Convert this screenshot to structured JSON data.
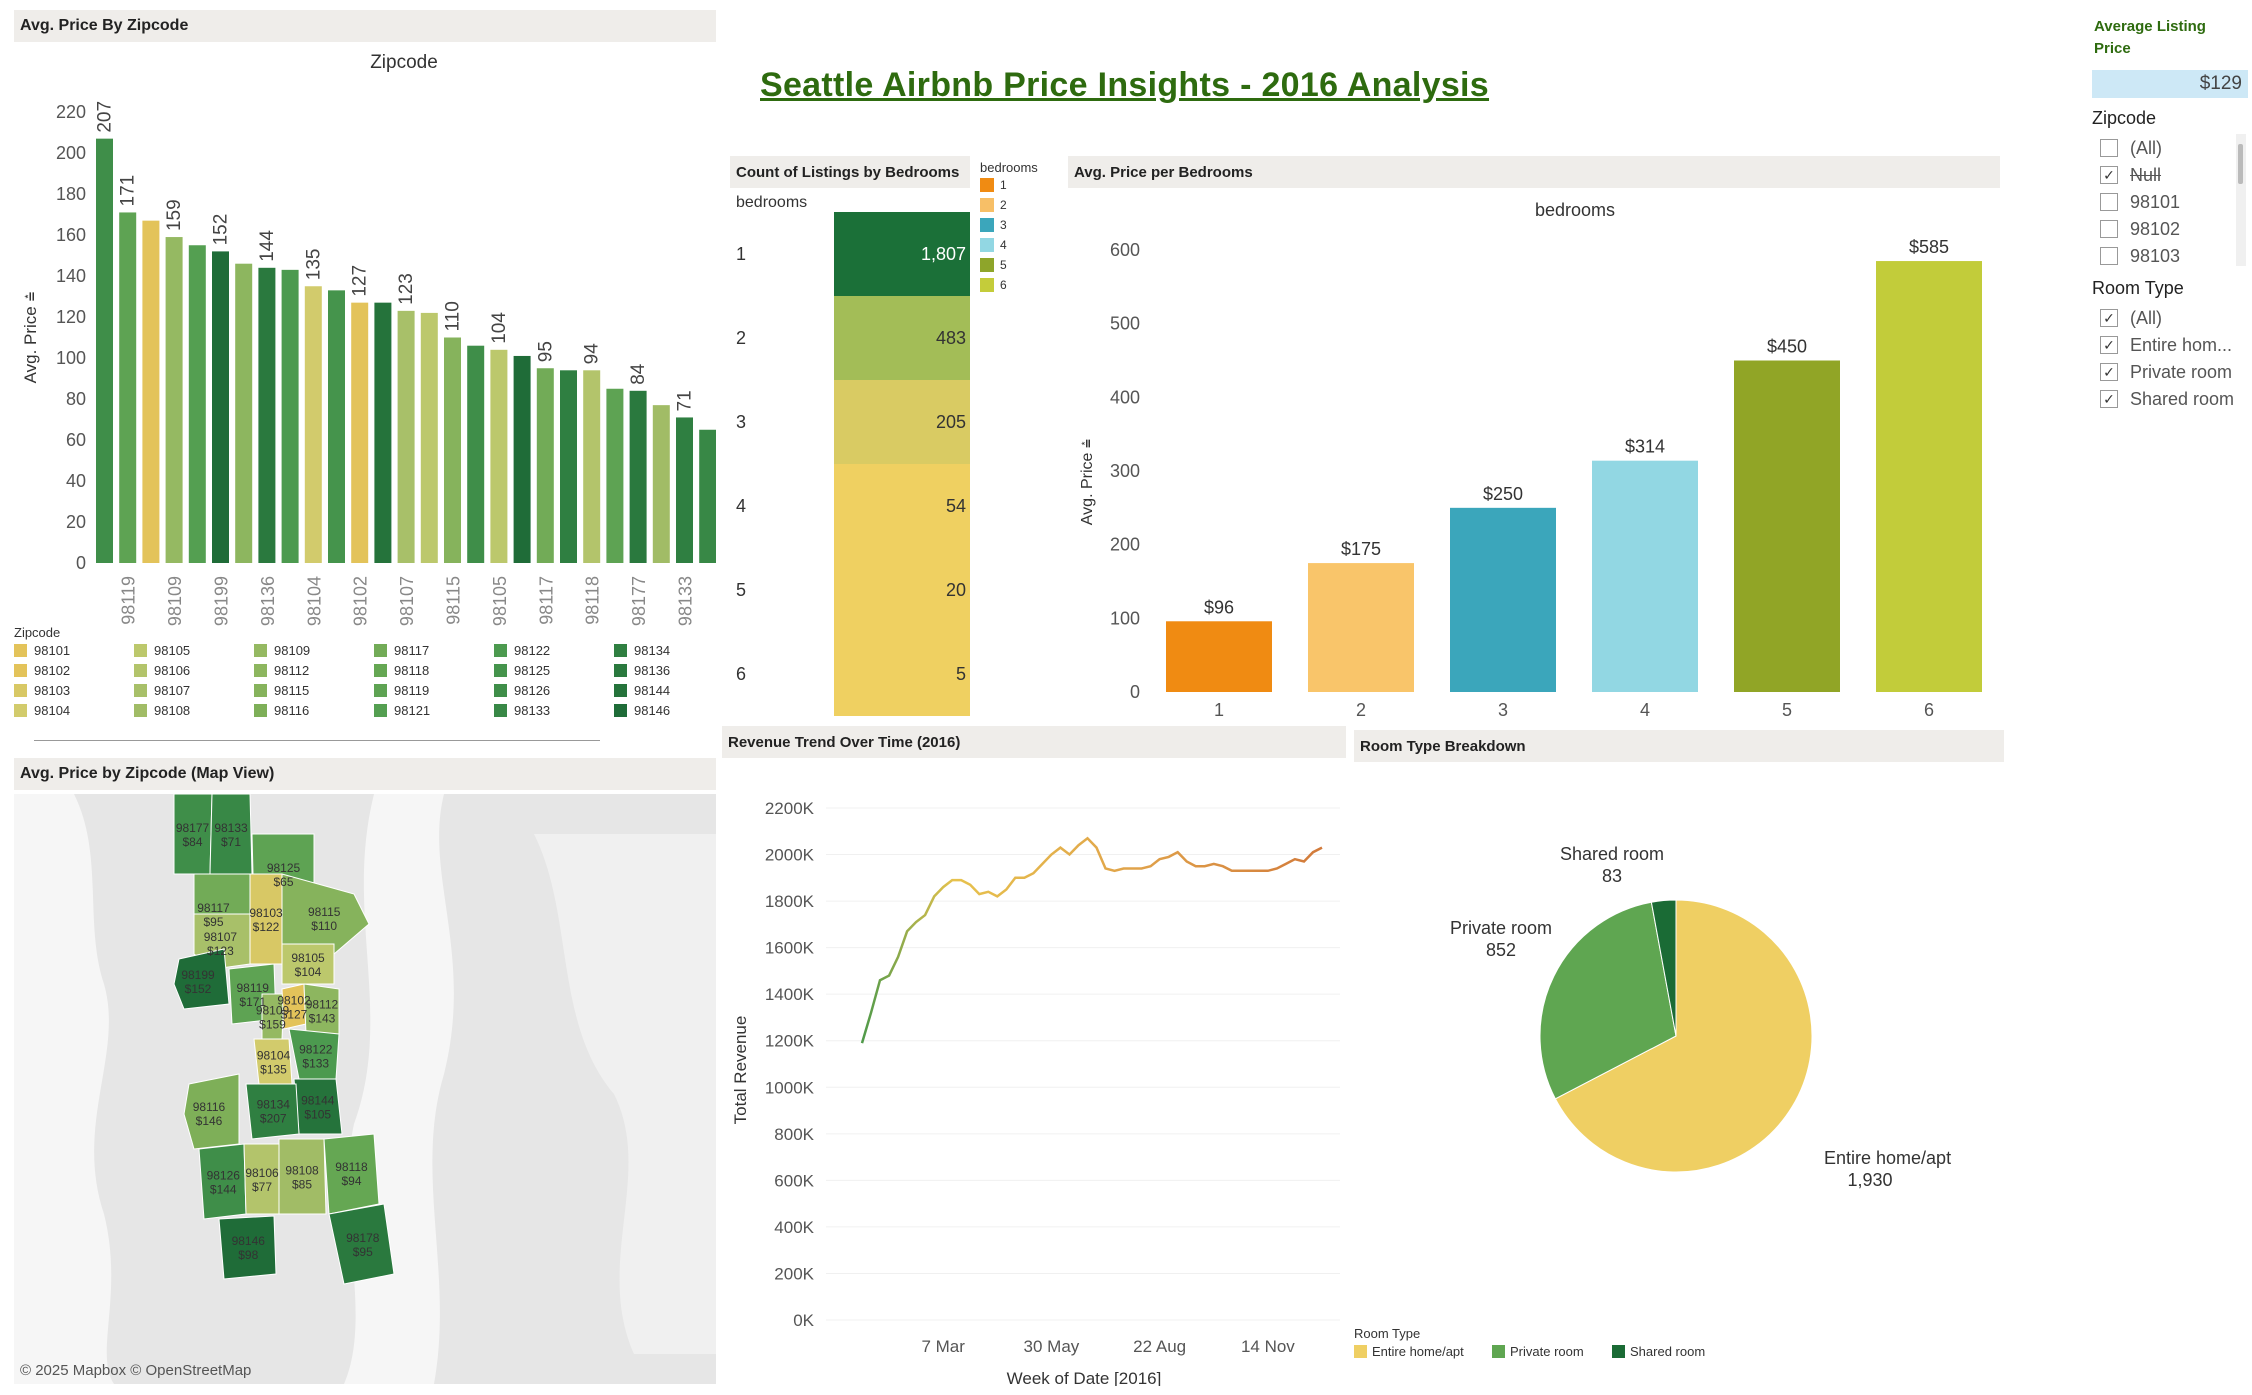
{
  "title": "Seattle Airbnb Price Insights - 2016 Analysis",
  "colors": {
    "title": "#2e6b0f",
    "panel_header": "#efedea",
    "entire_home": "#efcf63",
    "private_room": "#5fa651",
    "shared_room": "#1a6b35"
  },
  "avg_listing": {
    "label": "Average Listing Price",
    "value": "$129"
  },
  "filters": {
    "zipcode": {
      "title": "Zipcode",
      "options": [
        {
          "label": "(All)",
          "checked": false,
          "struck": false
        },
        {
          "label": "Null",
          "checked": true,
          "struck": true
        },
        {
          "label": "98101",
          "checked": false,
          "struck": false
        },
        {
          "label": "98102",
          "checked": false,
          "struck": false
        },
        {
          "label": "98103",
          "checked": false,
          "struck": false
        }
      ]
    },
    "room_type": {
      "title": "Room Type",
      "options": [
        {
          "label": "(All)",
          "checked": true
        },
        {
          "label": "Entire hom...",
          "checked": true
        },
        {
          "label": "Private room",
          "checked": true
        },
        {
          "label": "Shared room",
          "checked": true
        }
      ]
    }
  },
  "zip_bar": {
    "panel_title": "Avg. Price By Zipcode",
    "header": "Zipcode",
    "ylabel": "Avg. Price",
    "legend_title": "Zipcode",
    "legend": [
      {
        "zip": "98101",
        "color": "#e3c35a"
      },
      {
        "zip": "98102",
        "color": "#e3c35a"
      },
      {
        "zip": "98103",
        "color": "#d8c865"
      },
      {
        "zip": "98104",
        "color": "#d2cb6c"
      },
      {
        "zip": "98105",
        "color": "#bcc86c"
      },
      {
        "zip": "98106",
        "color": "#b3c46b"
      },
      {
        "zip": "98107",
        "color": "#a8c069"
      },
      {
        "zip": "98108",
        "color": "#a1bc66"
      },
      {
        "zip": "98109",
        "color": "#95b962"
      },
      {
        "zip": "98112",
        "color": "#8db65f"
      },
      {
        "zip": "98115",
        "color": "#86b35c"
      },
      {
        "zip": "98116",
        "color": "#7eaf58"
      },
      {
        "zip": "98117",
        "color": "#72ab57"
      },
      {
        "zip": "98118",
        "color": "#65a753"
      },
      {
        "zip": "98119",
        "color": "#5ea353"
      },
      {
        "zip": "98121",
        "color": "#549f51"
      },
      {
        "zip": "98122",
        "color": "#4c9a4f"
      },
      {
        "zip": "98125",
        "color": "#45944c"
      },
      {
        "zip": "98126",
        "color": "#3f8e49"
      },
      {
        "zip": "98133",
        "color": "#388846"
      },
      {
        "zip": "98134",
        "color": "#2f7f41"
      },
      {
        "zip": "98136",
        "color": "#2a793e"
      },
      {
        "zip": "98144",
        "color": "#25733b"
      },
      {
        "zip": "98146",
        "color": "#1f6c38"
      }
    ]
  },
  "map": {
    "panel_title": "Avg. Price by Zipcode (Map View)",
    "attribution": "© 2025 Mapbox © OpenStreetMap",
    "regions": [
      {
        "zip": "98177",
        "price": "$84"
      },
      {
        "zip": "98133",
        "price": "$71"
      },
      {
        "zip": "98125",
        "price": "$65"
      },
      {
        "zip": "98117",
        "price": "$95"
      },
      {
        "zip": "98103",
        "price": "$122"
      },
      {
        "zip": "98115",
        "price": "$110"
      },
      {
        "zip": "98107",
        "price": "$123"
      },
      {
        "zip": "98105",
        "price": "$104"
      },
      {
        "zip": "98199",
        "price": "$152"
      },
      {
        "zip": "98119",
        "price": "$171"
      },
      {
        "zip": "98109",
        "price": "$159"
      },
      {
        "zip": "98102",
        "price": "$127"
      },
      {
        "zip": "98112",
        "price": "$143"
      },
      {
        "zip": "98122",
        "price": "$133"
      },
      {
        "zip": "98104",
        "price": "$135"
      },
      {
        "zip": "98144",
        "price": "$105"
      },
      {
        "zip": "98116",
        "price": "$146"
      },
      {
        "zip": "98134",
        "price": "$207"
      },
      {
        "zip": "98126",
        "price": "$144"
      },
      {
        "zip": "98106",
        "price": "$77"
      },
      {
        "zip": "98108",
        "price": "$85"
      },
      {
        "zip": "98118",
        "price": "$94"
      },
      {
        "zip": "98146",
        "price": "$98"
      },
      {
        "zip": "98178",
        "price": "$95"
      }
    ]
  },
  "chart_data": [
    {
      "id": "avg_price_by_zipcode",
      "type": "bar",
      "title": "Avg. Price By Zipcode",
      "xlabel": "Zipcode",
      "ylabel": "Avg. Price",
      "ylim": [
        0,
        220
      ],
      "yticks": [
        0,
        20,
        40,
        60,
        80,
        100,
        120,
        140,
        160,
        180,
        200,
        220
      ],
      "categories": [
        "98134",
        "98119",
        "98101",
        "98109",
        "98121",
        "98199",
        "98112",
        "98136",
        "98122",
        "98104",
        "98102",
        "98144",
        "98107",
        "98103",
        "98126",
        "98115",
        "98146",
        "98105",
        "98133",
        "98117",
        "98118",
        "98106",
        "98177",
        "98108",
        "98125",
        "98133",
        "98178"
      ],
      "values": [
        207,
        171,
        167,
        159,
        155,
        152,
        146,
        144,
        143,
        135,
        133,
        127,
        127,
        123,
        122,
        110,
        106,
        104,
        101,
        95,
        94,
        94,
        85,
        84,
        77,
        71,
        65
      ],
      "bar_colors": [
        "#3f8e49",
        "#5ea353",
        "#e3c35a",
        "#95b962",
        "#549f51",
        "#1f6c38",
        "#8db65f",
        "#2a793e",
        "#4c9a4f",
        "#d2cb6c",
        "#45944c",
        "#e3c35a",
        "#25733b",
        "#a8c069",
        "#bcc86c",
        "#86b35c",
        "#3f8e49",
        "#bcc86c",
        "#1f6c38",
        "#72ab57",
        "#2f7f41",
        "#b3c46b",
        "#5ea353",
        "#2a793e",
        "#a1bc66",
        "#2f7f41",
        "#388846"
      ],
      "shown_value_labels": {
        "0": "207",
        "1": "171",
        "3": "159",
        "5": "152",
        "7": "144",
        "9": "135",
        "11": "127",
        "13": "123",
        "15": "110",
        "17": "104",
        "19": "95",
        "21": "94",
        "23": "84",
        "25": "71"
      },
      "shown_tick_labels": [
        "98119",
        "98109",
        "98199",
        "98136",
        "98104",
        "98102",
        "98107",
        "98115",
        "98105",
        "98117",
        "98118",
        "98177",
        "98133"
      ],
      "legend": "bottom",
      "grid": false
    },
    {
      "id": "count_by_bedrooms",
      "type": "bar",
      "title": "Count of Listings by Bedrooms",
      "header": "bedrooms",
      "categories": [
        "1",
        "2",
        "3",
        "4",
        "5",
        "6"
      ],
      "values": [
        1807,
        483,
        205,
        54,
        20,
        5
      ],
      "value_labels": [
        "1,807",
        "483",
        "205",
        "54",
        "20",
        "5"
      ],
      "colors": [
        "#1b7038",
        "#a3bd57",
        "#d9cb63",
        "#efd061",
        "#efd061",
        "#efd061"
      ],
      "legend_title": "bedrooms",
      "legend": [
        {
          "label": "1",
          "color": "#f08b12"
        },
        {
          "label": "2",
          "color": "#f7bf67"
        },
        {
          "label": "3",
          "color": "#3ba6bb"
        },
        {
          "label": "4",
          "color": "#92d7e3"
        },
        {
          "label": "5",
          "color": "#8ea52a"
        },
        {
          "label": "6",
          "color": "#c4cc3a"
        }
      ]
    },
    {
      "id": "avg_price_per_bedrooms",
      "type": "bar",
      "title": "Avg. Price per Bedrooms",
      "header": "bedrooms",
      "ylabel": "Avg. Price",
      "ylim": [
        0,
        600
      ],
      "yticks": [
        0,
        100,
        200,
        300,
        400,
        500,
        600
      ],
      "categories": [
        "1",
        "2",
        "3",
        "4",
        "5",
        "6"
      ],
      "values": [
        96,
        175,
        250,
        314,
        450,
        585
      ],
      "value_labels": [
        "$96",
        "$175",
        "$250",
        "$314",
        "$450",
        "$585"
      ],
      "colors": [
        "#f08b12",
        "#f9c56a",
        "#3ba6bb",
        "#92d7e3",
        "#91a526",
        "#c2cc3a"
      ],
      "grid": false
    },
    {
      "id": "revenue_trend",
      "type": "line",
      "title": "Revenue Trend Over Time (2016)",
      "xlabel": "Week of Date [2016]",
      "ylabel": "Total Revenue",
      "ylim": [
        0,
        2200
      ],
      "yticks": [
        0,
        200,
        400,
        600,
        800,
        1000,
        1200,
        1400,
        1600,
        1800,
        2000,
        2200
      ],
      "ytick_labels": [
        "0K",
        "200K",
        "400K",
        "600K",
        "800K",
        "1000K",
        "1200K",
        "1400K",
        "1600K",
        "1800K",
        "2000K",
        "2200K"
      ],
      "xtick_labels": [
        {
          "label": "7 Mar",
          "week": 9
        },
        {
          "label": "30 May",
          "week": 21
        },
        {
          "label": "22 Aug",
          "week": 33
        },
        {
          "label": "14 Nov",
          "week": 45
        }
      ],
      "week": [
        0,
        1,
        2,
        3,
        4,
        5,
        6,
        7,
        8,
        9,
        10,
        11,
        12,
        13,
        14,
        15,
        16,
        17,
        18,
        19,
        20,
        21,
        22,
        23,
        24,
        25,
        26,
        27,
        28,
        29,
        30,
        31,
        32,
        33,
        34,
        35,
        36,
        37,
        38,
        39,
        40,
        41,
        42,
        43,
        44,
        45,
        46,
        47,
        48,
        49,
        50,
        51
      ],
      "values": [
        1190,
        1320,
        1460,
        1480,
        1560,
        1670,
        1710,
        1740,
        1820,
        1860,
        1890,
        1890,
        1870,
        1830,
        1840,
        1820,
        1850,
        1900,
        1900,
        1920,
        1960,
        2000,
        2030,
        2000,
        2040,
        2070,
        2030,
        1940,
        1930,
        1940,
        1940,
        1940,
        1950,
        1980,
        1990,
        2010,
        1970,
        1950,
        1950,
        1960,
        1950,
        1930,
        1930,
        1930,
        1930,
        1930,
        1940,
        1960,
        1980,
        1970,
        2010,
        2030
      ],
      "grid": false
    },
    {
      "id": "room_type_breakdown",
      "type": "pie",
      "title": "Room Type Breakdown",
      "legend_title": "Room Type",
      "legend": "bottom-left",
      "slices": [
        {
          "label": "Entire home/apt",
          "value": 1930,
          "value_label": "1,930",
          "color": "#efcf63"
        },
        {
          "label": "Private room",
          "value": 852,
          "value_label": "852",
          "color": "#5fa651"
        },
        {
          "label": "Shared room",
          "value": 83,
          "value_label": "83",
          "color": "#1a6b35"
        }
      ]
    }
  ]
}
